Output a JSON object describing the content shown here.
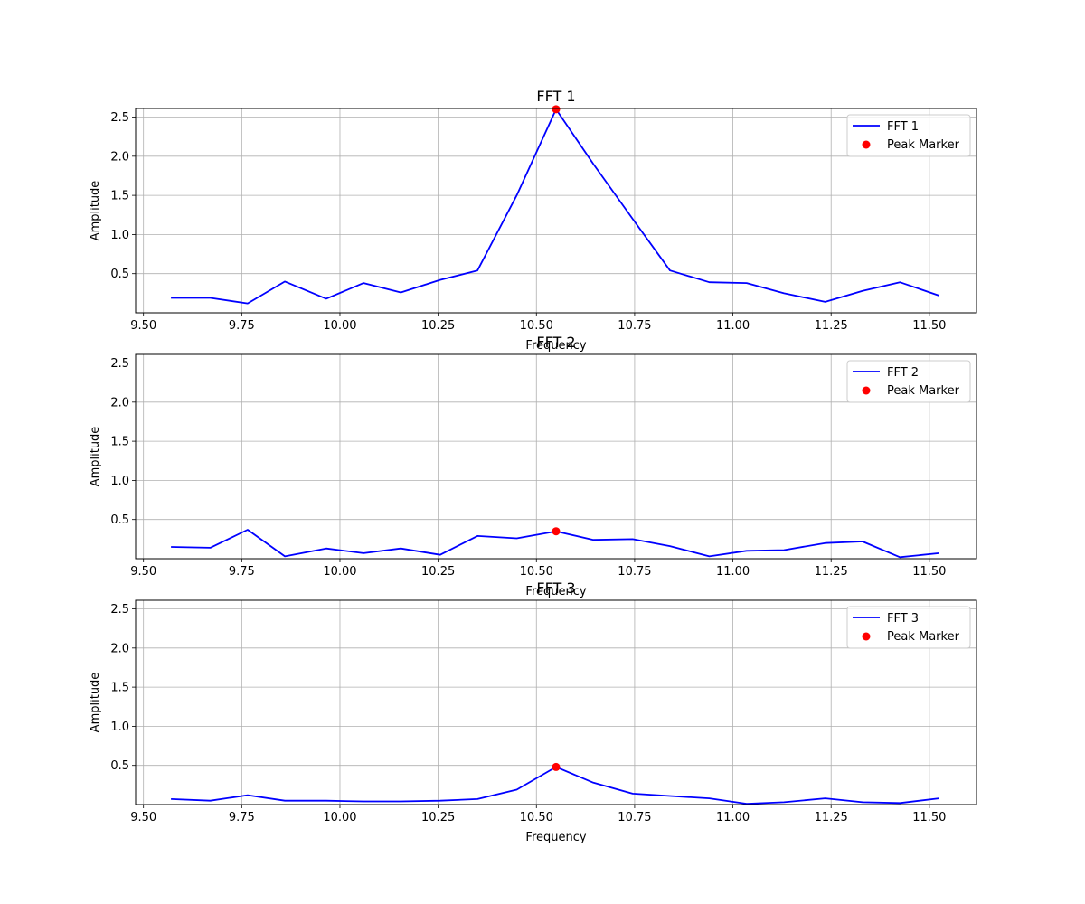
{
  "colors": {
    "line": "#0000ff",
    "marker": "#ff0000",
    "grid": "#b0b0b0",
    "axes": "#000000",
    "legend_border": "#cccccc"
  },
  "chart_data": [
    {
      "type": "line",
      "title": "FFT 1",
      "xlabel": "Frequency",
      "ylabel": "Amplitude",
      "xlim": [
        9.48,
        11.62
      ],
      "ylim": [
        0.0,
        2.61
      ],
      "xticks": [
        9.5,
        9.75,
        10.0,
        10.25,
        10.5,
        10.75,
        11.0,
        11.25,
        11.5
      ],
      "xtick_labels": [
        "9.50",
        "9.75",
        "10.00",
        "10.25",
        "10.50",
        "10.75",
        "11.00",
        "11.25",
        "11.50"
      ],
      "yticks": [
        0.5,
        1.0,
        1.5,
        2.0,
        2.5
      ],
      "ytick_labels": [
        "0.5",
        "1.0",
        "1.5",
        "2.0",
        "2.5"
      ],
      "grid": true,
      "legend_position": "top-right",
      "series": [
        {
          "name": "FFT 1",
          "x": [
            9.57,
            9.67,
            9.765,
            9.86,
            9.965,
            10.06,
            10.155,
            10.255,
            10.35,
            10.45,
            10.55,
            10.645,
            10.745,
            10.84,
            10.94,
            11.035,
            11.13,
            11.235,
            11.33,
            11.425,
            11.525
          ],
          "y": [
            0.19,
            0.19,
            0.12,
            0.4,
            0.18,
            0.38,
            0.26,
            0.42,
            0.54,
            1.5,
            2.6,
            1.9,
            1.2,
            0.54,
            0.39,
            0.38,
            0.25,
            0.14,
            0.28,
            0.39,
            0.22
          ]
        }
      ],
      "marker": {
        "name": "Peak Marker",
        "x": 10.55,
        "y": 2.6
      }
    },
    {
      "type": "line",
      "title": "FFT 2",
      "xlabel": "Frequency",
      "ylabel": "Amplitude",
      "xlim": [
        9.48,
        11.62
      ],
      "ylim": [
        0.0,
        2.61
      ],
      "xticks": [
        9.5,
        9.75,
        10.0,
        10.25,
        10.5,
        10.75,
        11.0,
        11.25,
        11.5
      ],
      "xtick_labels": [
        "9.50",
        "9.75",
        "10.00",
        "10.25",
        "10.50",
        "10.75",
        "11.00",
        "11.25",
        "11.50"
      ],
      "yticks": [
        0.5,
        1.0,
        1.5,
        2.0,
        2.5
      ],
      "ytick_labels": [
        "0.5",
        "1.0",
        "1.5",
        "2.0",
        "2.5"
      ],
      "grid": true,
      "legend_position": "top-right",
      "series": [
        {
          "name": "FFT 2",
          "x": [
            9.57,
            9.67,
            9.765,
            9.86,
            9.965,
            10.06,
            10.155,
            10.255,
            10.35,
            10.45,
            10.55,
            10.645,
            10.745,
            10.84,
            10.94,
            11.035,
            11.13,
            11.235,
            11.33,
            11.425,
            11.525
          ],
          "y": [
            0.15,
            0.14,
            0.37,
            0.03,
            0.13,
            0.07,
            0.13,
            0.05,
            0.29,
            0.26,
            0.35,
            0.24,
            0.25,
            0.16,
            0.03,
            0.1,
            0.11,
            0.2,
            0.22,
            0.02,
            0.07
          ]
        }
      ],
      "marker": {
        "name": "Peak Marker",
        "x": 10.55,
        "y": 0.35
      }
    },
    {
      "type": "line",
      "title": "FFT 3",
      "xlabel": "Frequency",
      "ylabel": "Amplitude",
      "xlim": [
        9.48,
        11.62
      ],
      "ylim": [
        0.0,
        2.61
      ],
      "xticks": [
        9.5,
        9.75,
        10.0,
        10.25,
        10.5,
        10.75,
        11.0,
        11.25,
        11.5
      ],
      "xtick_labels": [
        "9.50",
        "9.75",
        "10.00",
        "10.25",
        "10.50",
        "10.75",
        "11.00",
        "11.25",
        "11.50"
      ],
      "yticks": [
        0.5,
        1.0,
        1.5,
        2.0,
        2.5
      ],
      "ytick_labels": [
        "0.5",
        "1.0",
        "1.5",
        "2.0",
        "2.5"
      ],
      "grid": true,
      "legend_position": "top-right",
      "series": [
        {
          "name": "FFT 3",
          "x": [
            9.57,
            9.67,
            9.765,
            9.86,
            9.965,
            10.06,
            10.155,
            10.255,
            10.35,
            10.45,
            10.55,
            10.645,
            10.745,
            10.84,
            10.94,
            11.035,
            11.13,
            11.235,
            11.33,
            11.425,
            11.525
          ],
          "y": [
            0.07,
            0.05,
            0.12,
            0.05,
            0.05,
            0.04,
            0.04,
            0.05,
            0.07,
            0.19,
            0.48,
            0.28,
            0.14,
            0.11,
            0.08,
            0.01,
            0.03,
            0.08,
            0.03,
            0.02,
            0.08
          ]
        }
      ],
      "marker": {
        "name": "Peak Marker",
        "x": 10.55,
        "y": 0.48
      }
    }
  ]
}
